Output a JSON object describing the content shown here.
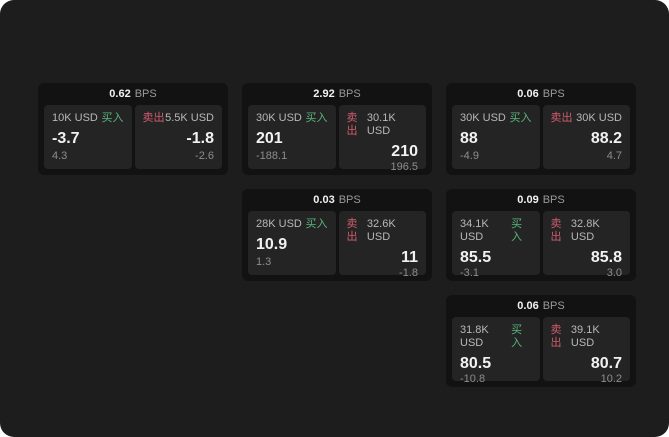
{
  "page": {
    "unit": "BPS",
    "buy_label": "买入",
    "sell_label": "卖出",
    "colors": {
      "background": "#1d1d1d",
      "card_background": "#121212",
      "panel_background": "#242424",
      "buy_accent": "#5ab57e",
      "sell_accent": "#d15c6c",
      "text_primary": "#f2f2f2",
      "text_secondary": "#b8b8b8",
      "text_muted": "#8d8d8d"
    }
  },
  "cards": [
    {
      "row": 1,
      "col": 1,
      "bps": "0.62",
      "buy": {
        "size": "10K USD",
        "value": "-3.7",
        "delta": "4.3"
      },
      "sell": {
        "size": "5.5K USD",
        "value": "-1.8",
        "delta": "-2.6"
      }
    },
    {
      "row": 1,
      "col": 2,
      "bps": "2.92",
      "buy": {
        "size": "30K USD",
        "value": "201",
        "delta": "-188.1"
      },
      "sell": {
        "size": "30.1K USD",
        "value": "210",
        "delta": "196.5"
      }
    },
    {
      "row": 1,
      "col": 3,
      "bps": "0.06",
      "buy": {
        "size": "30K USD",
        "value": "88",
        "delta": "-4.9"
      },
      "sell": {
        "size": "30K USD",
        "value": "88.2",
        "delta": "4.7"
      }
    },
    {
      "row": 2,
      "col": 2,
      "bps": "0.03",
      "buy": {
        "size": "28K USD",
        "value": "10.9",
        "delta": "1.3"
      },
      "sell": {
        "size": "32.6K USD",
        "value": "11",
        "delta": "-1.8"
      }
    },
    {
      "row": 2,
      "col": 3,
      "bps": "0.09",
      "buy": {
        "size": "34.1K USD",
        "value": "85.5",
        "delta": "-3.1"
      },
      "sell": {
        "size": "32.8K USD",
        "value": "85.8",
        "delta": "3.0"
      }
    },
    {
      "row": 3,
      "col": 3,
      "bps": "0.06",
      "buy": {
        "size": "31.8K USD",
        "value": "80.5",
        "delta": "-10.8"
      },
      "sell": {
        "size": "39.1K USD",
        "value": "80.7",
        "delta": "10.2"
      }
    }
  ]
}
